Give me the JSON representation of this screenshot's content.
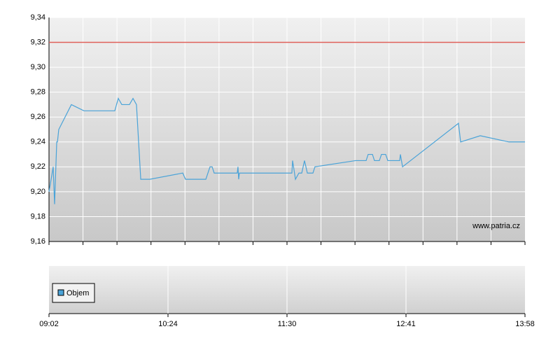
{
  "chart_data": {
    "type": "line",
    "x": [
      0,
      0.018,
      0.035,
      0.047,
      0.065,
      0.071,
      0.082,
      0.188,
      0.294,
      0.553,
      0.582,
      0.612,
      0.676,
      0.706,
      0.735,
      0.771,
      0.847,
      1.124,
      1.147,
      1.318,
      1.353,
      1.371,
      1.388,
      1.582,
      1.588,
      1.594,
      1.6,
      2.041,
      2.047,
      2.071,
      2.1,
      2.124,
      2.147,
      2.171,
      2.218,
      2.235,
      2.576,
      2.665,
      2.682,
      2.718,
      2.735,
      2.776,
      2.794,
      2.829,
      2.847,
      2.947,
      2.953,
      2.971,
      3.441,
      3.459,
      3.624,
      3.865,
      4
    ],
    "series": [
      {
        "name": "Objem",
        "color": "#4aa3d8",
        "values": [
          9.2,
          9.21,
          9.22,
          9.19,
          9.24,
          9.24,
          9.25,
          9.27,
          9.265,
          9.265,
          9.275,
          9.27,
          9.27,
          9.275,
          9.27,
          9.21,
          9.21,
          9.215,
          9.21,
          9.21,
          9.22,
          9.22,
          9.215,
          9.215,
          9.22,
          9.21,
          9.215,
          9.215,
          9.225,
          9.21,
          9.215,
          9.215,
          9.225,
          9.215,
          9.215,
          9.22,
          9.225,
          9.225,
          9.23,
          9.23,
          9.225,
          9.225,
          9.23,
          9.23,
          9.225,
          9.225,
          9.23,
          9.22,
          9.255,
          9.24,
          9.245,
          9.24,
          9.24
        ]
      }
    ],
    "reference_line": {
      "value": 9.32,
      "color": "#e0605a"
    },
    "ylim": [
      9.16,
      9.34
    ],
    "yticks": [
      {
        "value": 9.16,
        "label": "9,16"
      },
      {
        "value": 9.18,
        "label": "9,18"
      },
      {
        "value": 9.2,
        "label": "9,20"
      },
      {
        "value": 9.22,
        "label": "9,22"
      },
      {
        "value": 9.24,
        "label": "9,24"
      },
      {
        "value": 9.26,
        "label": "9,26"
      },
      {
        "value": 9.28,
        "label": "9,28"
      },
      {
        "value": 9.3,
        "label": "9,30"
      },
      {
        "value": 9.32,
        "label": "9,32"
      },
      {
        "value": 9.34,
        "label": "9,34"
      }
    ],
    "xlim": [
      0,
      4
    ],
    "xticks": [
      {
        "value": 0,
        "label": "09:02"
      },
      {
        "value": 1,
        "label": "10:24"
      },
      {
        "value": 2,
        "label": "11:30"
      },
      {
        "value": 3,
        "label": "12:41"
      },
      {
        "value": 4,
        "label": "13:58"
      }
    ],
    "watermark": "www.patria.cz",
    "grid": true
  }
}
